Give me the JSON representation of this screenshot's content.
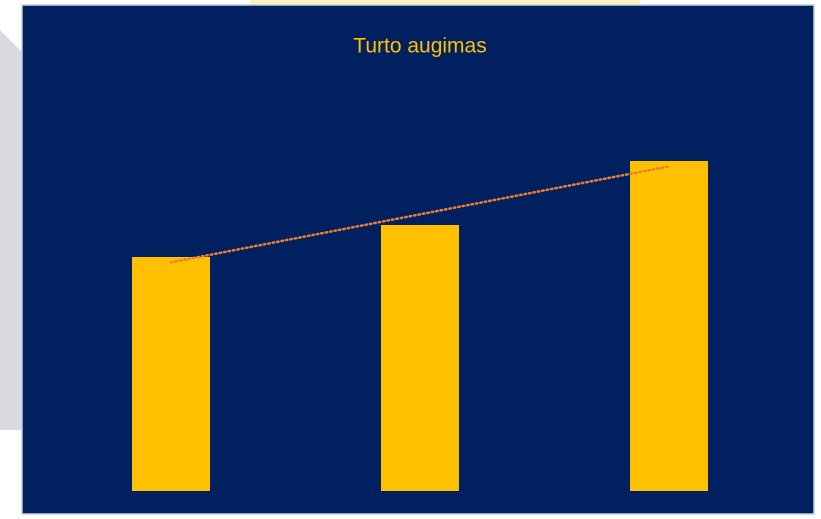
{
  "chart_data": {
    "type": "bar",
    "title": "Turto augimas",
    "categories": [
      null,
      null,
      null
    ],
    "values": [
      234,
      266,
      330
    ],
    "color": "#ffc000",
    "ylim": [
      0,
      400
    ],
    "trendline": "linear",
    "trendline_color": "#ed7d31"
  }
}
